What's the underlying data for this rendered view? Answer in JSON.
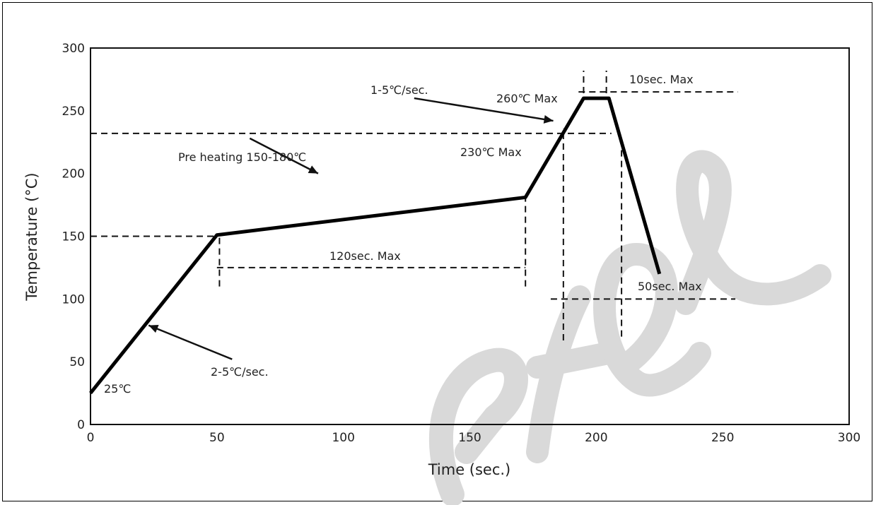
{
  "chart_data": {
    "type": "line",
    "xlabel": "Time (sec.)",
    "ylabel": "Temperature (°C)",
    "xlim": [
      0,
      300
    ],
    "ylim": [
      0,
      300
    ],
    "x_ticks": [
      "0",
      "50",
      "100",
      "150",
      "200",
      "250",
      "300"
    ],
    "y_ticks": [
      "0",
      "50",
      "100",
      "150",
      "200",
      "250",
      "300"
    ],
    "grid": false,
    "series": [
      {
        "x": [
          0,
          50,
          172,
          195,
          205,
          225
        ],
        "y": [
          25,
          151,
          181,
          260,
          260,
          120
        ]
      }
    ],
    "reference_lines": [
      {
        "axis": "y",
        "value": 150,
        "from": 0,
        "to": 50
      },
      {
        "axis": "y",
        "value": 232,
        "from": 0,
        "to": 206
      },
      {
        "axis": "y",
        "value": 265,
        "from": 193,
        "to": 256
      },
      {
        "axis": "y",
        "value": 100,
        "from": 182,
        "to": 255
      },
      {
        "axis": "y",
        "value": 125,
        "from": 50,
        "to": 172
      },
      {
        "axis": "x",
        "value": 51,
        "from": 110,
        "to": 152
      },
      {
        "axis": "x",
        "value": 172,
        "from": 110,
        "to": 185
      },
      {
        "axis": "x",
        "value": 187,
        "from": 67,
        "to": 236
      },
      {
        "axis": "x",
        "value": 210,
        "from": 70,
        "to": 222
      },
      {
        "axis": "x",
        "value": 195,
        "from": 264,
        "to": 282
      },
      {
        "axis": "x",
        "value": 204,
        "from": 264,
        "to": 282
      }
    ],
    "annotations": [
      {
        "text": "25℃"
      },
      {
        "text": "2-5℃/sec."
      },
      {
        "text": "Pre heating 150-180℃"
      },
      {
        "text": "120sec. Max"
      },
      {
        "text": "1-5℃/sec."
      },
      {
        "text": "260℃ Max"
      },
      {
        "text": "230℃ Max"
      },
      {
        "text": "10sec. Max"
      },
      {
        "text": "50sec. Max"
      }
    ],
    "arrows": [
      {
        "from": [
          56,
          52
        ],
        "to": [
          23,
          79
        ]
      },
      {
        "from": [
          63,
          228
        ],
        "to": [
          90,
          200
        ]
      },
      {
        "from": [
          128,
          260
        ],
        "to": [
          183,
          242
        ]
      }
    ]
  },
  "colors": {
    "line": "#000000",
    "dashed": "#111111",
    "watermark": "#d9d9d9"
  }
}
